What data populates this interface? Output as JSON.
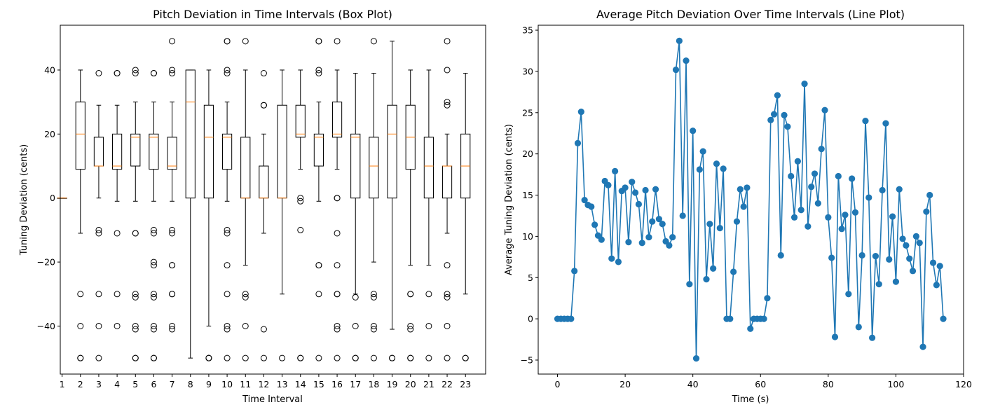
{
  "chart_data": [
    {
      "type": "box",
      "title": "Pitch Deviation in Time Intervals (Box Plot)",
      "xlabel": "Time Interval",
      "ylabel": "Tuning Deviation (cents)",
      "ylim": [
        -55,
        54
      ],
      "yticks": [
        -40,
        -20,
        0,
        20,
        40
      ],
      "categories": [
        "1",
        "2",
        "3",
        "4",
        "5",
        "6",
        "7",
        "8",
        "9",
        "10",
        "11",
        "12",
        "13",
        "14",
        "15",
        "16",
        "17",
        "18",
        "19",
        "20",
        "21",
        "22",
        "23"
      ],
      "boxes": [
        {
          "q1": 0,
          "median": 0,
          "q3": 0,
          "whislo": 0,
          "whishi": 0,
          "fliers": []
        },
        {
          "q1": 9,
          "median": 20,
          "q3": 30,
          "whislo": -11,
          "whishi": 40,
          "fliers": [
            -30,
            -40,
            -50,
            -50
          ]
        },
        {
          "q1": 10,
          "median": 10,
          "q3": 19,
          "whislo": 0,
          "whishi": 29,
          "fliers": [
            39,
            -10,
            -11,
            -30,
            -40,
            -50
          ]
        },
        {
          "q1": 9,
          "median": 10,
          "q3": 20,
          "whislo": -1,
          "whishi": 29,
          "fliers": [
            39,
            39,
            -11,
            -30,
            -40
          ]
        },
        {
          "q1": 10,
          "median": 19,
          "q3": 20,
          "whislo": -1,
          "whishi": 30,
          "fliers": [
            40,
            39,
            -11,
            -11,
            -30,
            -31,
            -40,
            -41,
            -50,
            -50
          ]
        },
        {
          "q1": 9,
          "median": 19,
          "q3": 20,
          "whislo": -1,
          "whishi": 30,
          "fliers": [
            39,
            39,
            -10,
            -11,
            -20,
            -21,
            -30,
            -31,
            -40,
            -41,
            -50,
            -50
          ]
        },
        {
          "q1": 9,
          "median": 10,
          "q3": 19,
          "whislo": -1,
          "whishi": 30,
          "fliers": [
            49,
            40,
            39,
            -10,
            -11,
            -21,
            -21,
            -30,
            -30,
            -40,
            -41
          ]
        },
        {
          "q1": 0,
          "median": 30,
          "q3": 40,
          "whislo": -50,
          "whishi": 40,
          "fliers": []
        },
        {
          "q1": 0,
          "median": 19,
          "q3": 29,
          "whislo": -40,
          "whishi": 40,
          "fliers": [
            -50,
            -50,
            -50
          ]
        },
        {
          "q1": 9,
          "median": 19,
          "q3": 20,
          "whislo": -1,
          "whishi": 30,
          "fliers": [
            49,
            49,
            40,
            39,
            -10,
            -11,
            -21,
            -30,
            -40,
            -41,
            -50
          ]
        },
        {
          "q1": 0,
          "median": 0,
          "q3": 19,
          "whislo": -21,
          "whishi": 40,
          "fliers": [
            49,
            -30,
            -31,
            -40,
            -50
          ]
        },
        {
          "q1": 0,
          "median": 0,
          "q3": 10,
          "whislo": -11,
          "whishi": 20,
          "fliers": [
            39,
            29,
            29,
            -41,
            -50
          ]
        },
        {
          "q1": 0,
          "median": 0,
          "q3": 29,
          "whislo": -30,
          "whishi": 40,
          "fliers": [
            -50
          ]
        },
        {
          "q1": 19,
          "median": 20,
          "q3": 29,
          "whislo": 9,
          "whishi": 40,
          "fliers": [
            0,
            -1,
            -10,
            -50,
            -50
          ]
        },
        {
          "q1": 10,
          "median": 19,
          "q3": 20,
          "whislo": -1,
          "whishi": 30,
          "fliers": [
            49,
            49,
            40,
            39,
            -21,
            -21,
            -30,
            -50
          ]
        },
        {
          "q1": 19,
          "median": 20,
          "q3": 30,
          "whislo": 9,
          "whishi": 40,
          "fliers": [
            49,
            0,
            0,
            -11,
            -21,
            -30,
            -30,
            -40,
            -41,
            -50
          ]
        },
        {
          "q1": 0,
          "median": 19,
          "q3": 20,
          "whislo": -30,
          "whishi": 39,
          "fliers": [
            -31,
            -40,
            -50,
            -50
          ]
        },
        {
          "q1": 0,
          "median": 10,
          "q3": 19,
          "whislo": -20,
          "whishi": 39,
          "fliers": [
            49,
            -30,
            -31,
            -40,
            -41,
            -50
          ]
        },
        {
          "q1": 0,
          "median": 20,
          "q3": 29,
          "whislo": -41,
          "whishi": 49,
          "fliers": [
            -50,
            -50
          ]
        },
        {
          "q1": 9,
          "median": 19,
          "q3": 29,
          "whislo": -21,
          "whishi": 40,
          "fliers": [
            -30,
            -30,
            -40,
            -41,
            -50,
            -50
          ]
        },
        {
          "q1": 0,
          "median": 10,
          "q3": 19,
          "whislo": -21,
          "whishi": 40,
          "fliers": [
            -30,
            -40,
            -50
          ]
        },
        {
          "q1": 0,
          "median": 10,
          "q3": 10,
          "whislo": -11,
          "whishi": 20,
          "fliers": [
            49,
            40,
            30,
            29,
            -21,
            -30,
            -31,
            -40,
            -50
          ]
        },
        {
          "q1": 0,
          "median": 10,
          "q3": 20,
          "whislo": -30,
          "whishi": 39,
          "fliers": [
            -50,
            -50
          ]
        }
      ]
    },
    {
      "type": "line",
      "title": "Average Pitch Deviation Over Time Intervals (Line Plot)",
      "xlabel": "Time (s)",
      "ylabel": "Average Tuning Deviation (cents)",
      "xlim": [
        -5.7,
        120
      ],
      "ylim": [
        -6.7,
        35.6
      ],
      "xticks": [
        0,
        20,
        40,
        60,
        80,
        100,
        120
      ],
      "yticks": [
        -5,
        0,
        5,
        10,
        15,
        20,
        25,
        30,
        35
      ],
      "color": "#1f77b4",
      "x_start": 0,
      "x_step": 1,
      "values": [
        0,
        0,
        0,
        0,
        0,
        5.8,
        21.3,
        25.1,
        14.4,
        13.8,
        13.6,
        11.4,
        10.1,
        9.6,
        16.7,
        16.2,
        7.3,
        17.9,
        6.9,
        15.5,
        15.9,
        9.3,
        16.6,
        15.3,
        13.9,
        9.2,
        15.6,
        9.9,
        11.8,
        15.7,
        12.1,
        11.5,
        9.4,
        8.9,
        9.9,
        30.2,
        33.7,
        12.5,
        31.3,
        4.2,
        22.8,
        -4.8,
        18.1,
        20.3,
        4.8,
        11.5,
        6.1,
        18.8,
        11.0,
        18.2,
        0,
        0,
        5.7,
        11.8,
        15.7,
        13.6,
        15.9,
        -1.2,
        0,
        0,
        0,
        0,
        2.5,
        24.1,
        24.8,
        27.1,
        7.7,
        24.7,
        23.3,
        17.3,
        12.3,
        19.1,
        13.2,
        28.5,
        11.2,
        16.0,
        17.6,
        14.0,
        20.6,
        25.3,
        12.3,
        7.4,
        -2.2,
        17.3,
        10.9,
        12.6,
        3.0,
        17.0,
        12.9,
        -1.0,
        7.7,
        24.0,
        14.7,
        -2.3,
        7.6,
        4.2,
        15.6,
        23.7,
        7.2,
        12.4,
        4.5,
        15.7,
        9.7,
        8.9,
        7.3,
        5.8,
        10.0,
        9.2,
        -3.4,
        13.0,
        15.0,
        6.8,
        4.1,
        6.4,
        0
      ]
    }
  ]
}
